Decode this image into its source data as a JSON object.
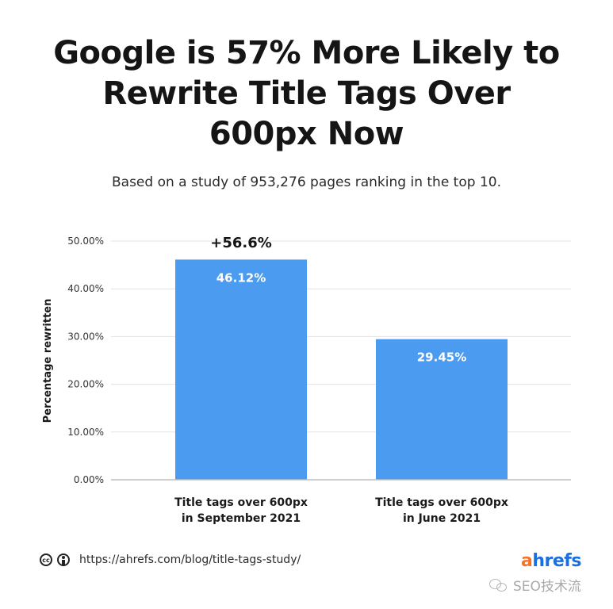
{
  "header": {
    "title": "Google is 57% More Likely to\nRewrite Title Tags Over\n600px Now",
    "subtitle": "Based on a study of 953,276 pages ranking in the top 10."
  },
  "chart_data": {
    "type": "bar",
    "ylabel": "Percentage rewritten",
    "ylim": [
      0,
      50
    ],
    "yticks": [
      "0.00%",
      "10.00%",
      "20.00%",
      "30.00%",
      "40.00%",
      "50.00%"
    ],
    "ytick_values": [
      0,
      10,
      20,
      30,
      40,
      50
    ],
    "categories": [
      [
        "Title tags over 600px",
        "in September 2021"
      ],
      [
        "Title tags over 600px",
        "in June 2021"
      ]
    ],
    "values": [
      46.12,
      29.45
    ],
    "value_labels": [
      "46.12%",
      "29.45%"
    ],
    "annotation": "+56.6%",
    "grid": true,
    "bar_color": "#4b9cf0"
  },
  "footer": {
    "url": "https://ahrefs.com/blog/title-tags-study/",
    "brand_a": "a",
    "brand_rest": "hrefs",
    "cc_icon": "creative-commons-icon",
    "by_icon": "attribution-icon",
    "watermark": "SEO技术流"
  }
}
